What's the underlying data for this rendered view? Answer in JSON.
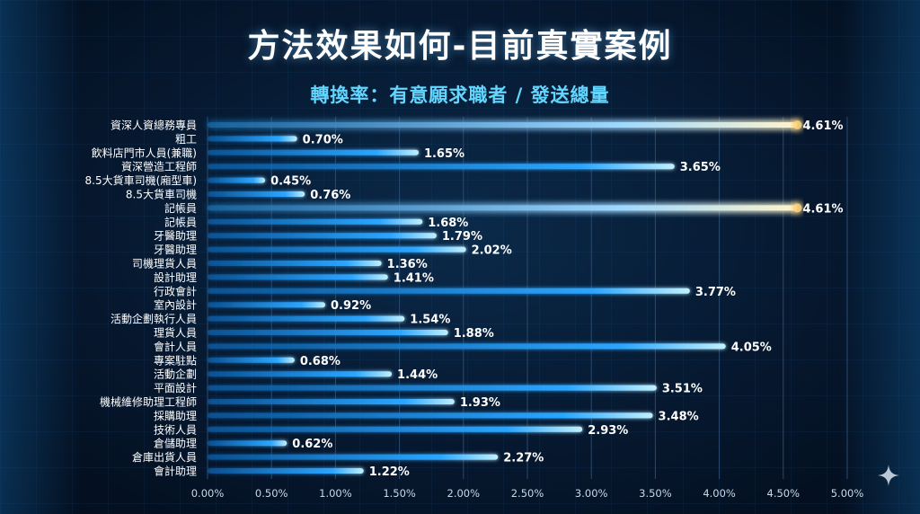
{
  "header": {
    "title": "方法效果如何-目前真實案例",
    "subtitle": "轉換率：有意願求職者 / 發送總量"
  },
  "colors": {
    "bar": "#2ba6ff",
    "bar_highlight": "#ffd680",
    "label_text": "#ffffff",
    "tick_text": "#c8d8ea",
    "grid": "#2a4a6e"
  },
  "chart_data": {
    "type": "bar",
    "orientation": "horizontal",
    "title": "",
    "xlabel": "",
    "ylabel": "",
    "xlim": [
      0,
      5
    ],
    "grid": true,
    "xticks": [
      "0.00%",
      "0.50%",
      "1.00%",
      "1.50%",
      "2.00%",
      "2.50%",
      "3.00%",
      "3.50%",
      "4.00%",
      "4.50%",
      "5.00%"
    ],
    "categories": [
      "資深人資總務專員",
      "粗工",
      "飲料店門市人員(兼職)",
      "資深營造工程師",
      "8.5大貨車司機(廂型車)",
      "8.5大貨車司機",
      "記帳員",
      "記帳員",
      "牙醫助理",
      "牙醫助理",
      "司機理貨人員",
      "設計助理",
      "行政會計",
      "室內設計",
      "活動企劃執行人員",
      "理貨人員",
      "會計人員",
      "專案駐點",
      "活動企劃",
      "平面設計",
      "機械維修助理工程師",
      "採購助理",
      "技術人員",
      "倉儲助理",
      "倉庫出貨人員",
      "會計助理"
    ],
    "values": [
      4.61,
      0.7,
      1.65,
      3.65,
      0.45,
      0.76,
      4.61,
      1.68,
      1.79,
      2.02,
      1.36,
      1.41,
      3.77,
      0.92,
      1.54,
      1.88,
      4.05,
      0.68,
      1.44,
      3.51,
      1.93,
      3.48,
      2.93,
      0.62,
      2.27,
      1.22
    ],
    "value_labels": [
      "4.61%",
      "0.70%",
      "1.65%",
      "3.65%",
      "0.45%",
      "0.76%",
      "4.61%",
      "1.68%",
      "1.79%",
      "2.02%",
      "1.36%",
      "1.41%",
      "3.77%",
      "0.92%",
      "1.54%",
      "1.88%",
      "4.05%",
      "0.68%",
      "1.44%",
      "3.51%",
      "1.93%",
      "3.48%",
      "2.93%",
      "0.62%",
      "2.27%",
      "1.22%"
    ],
    "highlighted": [
      0,
      6
    ]
  }
}
